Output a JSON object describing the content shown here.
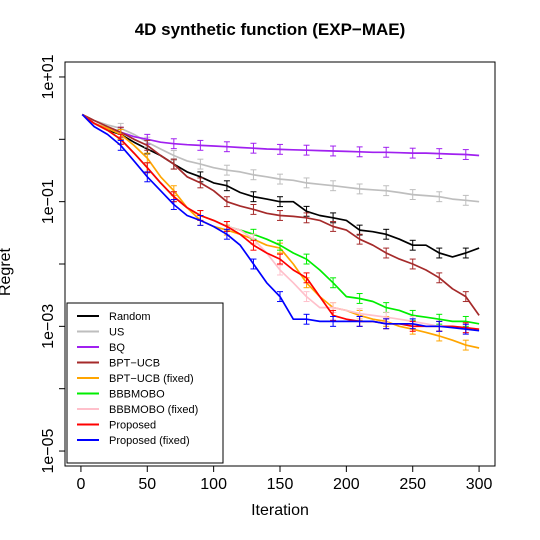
{
  "chart_data": {
    "type": "line",
    "title": "4D synthetic function (EXP−MAE)",
    "xlabel": "Iteration",
    "ylabel": "Regret",
    "x_ticks": [
      0,
      50,
      100,
      150,
      200,
      250,
      300
    ],
    "y_scale": "log",
    "y_ticks": [
      "1e+01",
      "1e−01",
      "1e−03",
      "1e−05"
    ],
    "y_tick_values": [
      10,
      0.1,
      0.001,
      1e-05
    ],
    "xlim": [
      0,
      300
    ],
    "ylim": [
      1e-05,
      10
    ],
    "grid": false,
    "legend_position": "bottom-left",
    "series": [
      {
        "name": "Random",
        "color": "#000000",
        "x": [
          1,
          10,
          20,
          30,
          40,
          50,
          60,
          70,
          80,
          90,
          100,
          110,
          120,
          130,
          140,
          150,
          160,
          170,
          180,
          190,
          200,
          210,
          220,
          230,
          240,
          250,
          260,
          270,
          280,
          290,
          300
        ],
        "y": [
          2.5,
          1.8,
          1.4,
          1.2,
          0.9,
          0.7,
          0.55,
          0.4,
          0.3,
          0.25,
          0.2,
          0.18,
          0.14,
          0.12,
          0.11,
          0.1,
          0.1,
          0.07,
          0.06,
          0.055,
          0.05,
          0.035,
          0.033,
          0.03,
          0.025,
          0.02,
          0.02,
          0.015,
          0.013,
          0.015,
          0.018
        ]
      },
      {
        "name": "US",
        "color": "#bebebe",
        "x": [
          1,
          10,
          20,
          30,
          40,
          50,
          60,
          70,
          80,
          90,
          100,
          110,
          120,
          130,
          140,
          150,
          160,
          170,
          180,
          190,
          200,
          210,
          220,
          230,
          240,
          250,
          260,
          270,
          280,
          290,
          300
        ],
        "y": [
          2.5,
          2.0,
          1.7,
          1.5,
          1.2,
          0.9,
          0.7,
          0.55,
          0.45,
          0.4,
          0.35,
          0.32,
          0.3,
          0.27,
          0.25,
          0.23,
          0.22,
          0.2,
          0.19,
          0.18,
          0.17,
          0.16,
          0.155,
          0.15,
          0.14,
          0.13,
          0.125,
          0.12,
          0.11,
          0.105,
          0.1
        ]
      },
      {
        "name": "BQ",
        "color": "#a020f0",
        "x": [
          1,
          10,
          20,
          30,
          40,
          50,
          60,
          70,
          80,
          90,
          100,
          110,
          120,
          130,
          140,
          150,
          160,
          170,
          180,
          190,
          200,
          210,
          220,
          230,
          240,
          250,
          260,
          270,
          280,
          290,
          300
        ],
        "y": [
          2.5,
          1.8,
          1.5,
          1.3,
          1.1,
          1.0,
          0.9,
          0.85,
          0.82,
          0.8,
          0.78,
          0.76,
          0.74,
          0.72,
          0.7,
          0.69,
          0.68,
          0.67,
          0.66,
          0.65,
          0.64,
          0.63,
          0.62,
          0.62,
          0.61,
          0.6,
          0.6,
          0.59,
          0.58,
          0.57,
          0.55
        ]
      },
      {
        "name": "BPT−UCB",
        "color": "#a52a2a",
        "x": [
          1,
          10,
          20,
          30,
          40,
          50,
          60,
          70,
          80,
          90,
          100,
          110,
          120,
          130,
          140,
          150,
          160,
          170,
          180,
          190,
          200,
          210,
          220,
          230,
          240,
          250,
          260,
          270,
          280,
          290,
          300
        ],
        "y": [
          2.5,
          2.0,
          1.6,
          1.3,
          1.0,
          0.8,
          0.55,
          0.4,
          0.25,
          0.2,
          0.15,
          0.1,
          0.085,
          0.075,
          0.065,
          0.06,
          0.058,
          0.055,
          0.05,
          0.04,
          0.035,
          0.025,
          0.02,
          0.015,
          0.012,
          0.01,
          0.008,
          0.006,
          0.004,
          0.003,
          0.0015
        ]
      },
      {
        "name": "BPT−UCB (fixed)",
        "color": "#ffa500",
        "x": [
          1,
          10,
          20,
          30,
          40,
          50,
          60,
          70,
          80,
          90,
          100,
          110,
          120,
          130,
          140,
          150,
          160,
          170,
          180,
          190,
          200,
          210,
          220,
          230,
          240,
          250,
          260,
          270,
          280,
          290,
          300
        ],
        "y": [
          2.5,
          1.8,
          1.5,
          1.2,
          0.8,
          0.5,
          0.25,
          0.15,
          0.08,
          0.05,
          0.04,
          0.035,
          0.03,
          0.025,
          0.02,
          0.018,
          0.01,
          0.005,
          0.003,
          0.002,
          0.0018,
          0.0015,
          0.0013,
          0.0012,
          0.001,
          0.0009,
          0.0008,
          0.0007,
          0.0006,
          0.0005,
          0.00045
        ]
      },
      {
        "name": "BBBMOBO",
        "color": "#00ee00",
        "x": [
          1,
          10,
          20,
          30,
          40,
          50,
          60,
          70,
          80,
          90,
          100,
          110,
          120,
          130,
          140,
          150,
          160,
          170,
          180,
          190,
          200,
          210,
          220,
          230,
          240,
          250,
          260,
          270,
          280,
          290,
          300
        ],
        "y": [
          2.5,
          1.8,
          1.4,
          1.0,
          0.6,
          0.35,
          0.2,
          0.12,
          0.08,
          0.06,
          0.05,
          0.04,
          0.035,
          0.03,
          0.025,
          0.02,
          0.015,
          0.012,
          0.008,
          0.005,
          0.003,
          0.0028,
          0.0025,
          0.002,
          0.0018,
          0.0015,
          0.0014,
          0.0013,
          0.0012,
          0.0012,
          0.0011
        ]
      },
      {
        "name": "BBBMOBO (fixed)",
        "color": "#ffc0cb",
        "x": [
          1,
          10,
          20,
          30,
          40,
          50,
          60,
          70,
          80,
          90,
          100,
          110,
          120,
          130,
          140,
          150,
          160,
          170,
          180,
          190,
          200,
          210,
          220,
          230,
          240,
          250,
          260,
          270,
          280,
          290,
          300
        ],
        "y": [
          2.5,
          1.8,
          1.4,
          1.0,
          0.6,
          0.35,
          0.2,
          0.12,
          0.08,
          0.06,
          0.05,
          0.04,
          0.035,
          0.025,
          0.015,
          0.008,
          0.005,
          0.003,
          0.002,
          0.002,
          0.0018,
          0.0016,
          0.0015,
          0.0014,
          0.0013,
          0.0012,
          0.0011,
          0.001,
          0.001,
          0.00095,
          0.0009
        ]
      },
      {
        "name": "Proposed",
        "color": "#ff0000",
        "x": [
          1,
          10,
          20,
          30,
          40,
          50,
          60,
          70,
          80,
          90,
          100,
          110,
          120,
          130,
          140,
          150,
          160,
          170,
          180,
          190,
          200,
          210,
          220,
          230,
          240,
          250,
          260,
          270,
          280,
          290,
          300
        ],
        "y": [
          2.5,
          1.8,
          1.4,
          1.0,
          0.6,
          0.35,
          0.2,
          0.12,
          0.08,
          0.06,
          0.05,
          0.04,
          0.03,
          0.02,
          0.015,
          0.012,
          0.008,
          0.006,
          0.003,
          0.0015,
          0.0013,
          0.0012,
          0.0012,
          0.0011,
          0.0011,
          0.001,
          0.001,
          0.001,
          0.001,
          0.00095,
          0.0009
        ]
      },
      {
        "name": "Proposed (fixed)",
        "color": "#0000ff",
        "x": [
          1,
          10,
          20,
          30,
          40,
          50,
          60,
          70,
          80,
          90,
          100,
          110,
          120,
          130,
          140,
          150,
          160,
          170,
          180,
          190,
          200,
          210,
          220,
          230,
          240,
          250,
          260,
          270,
          280,
          290,
          300
        ],
        "y": [
          2.5,
          1.6,
          1.2,
          0.8,
          0.45,
          0.25,
          0.15,
          0.09,
          0.06,
          0.05,
          0.04,
          0.03,
          0.02,
          0.01,
          0.005,
          0.003,
          0.0013,
          0.0013,
          0.0012,
          0.0012,
          0.0012,
          0.0012,
          0.0012,
          0.0011,
          0.0011,
          0.0011,
          0.001,
          0.001,
          0.00095,
          0.0009,
          0.00085
        ]
      }
    ]
  }
}
